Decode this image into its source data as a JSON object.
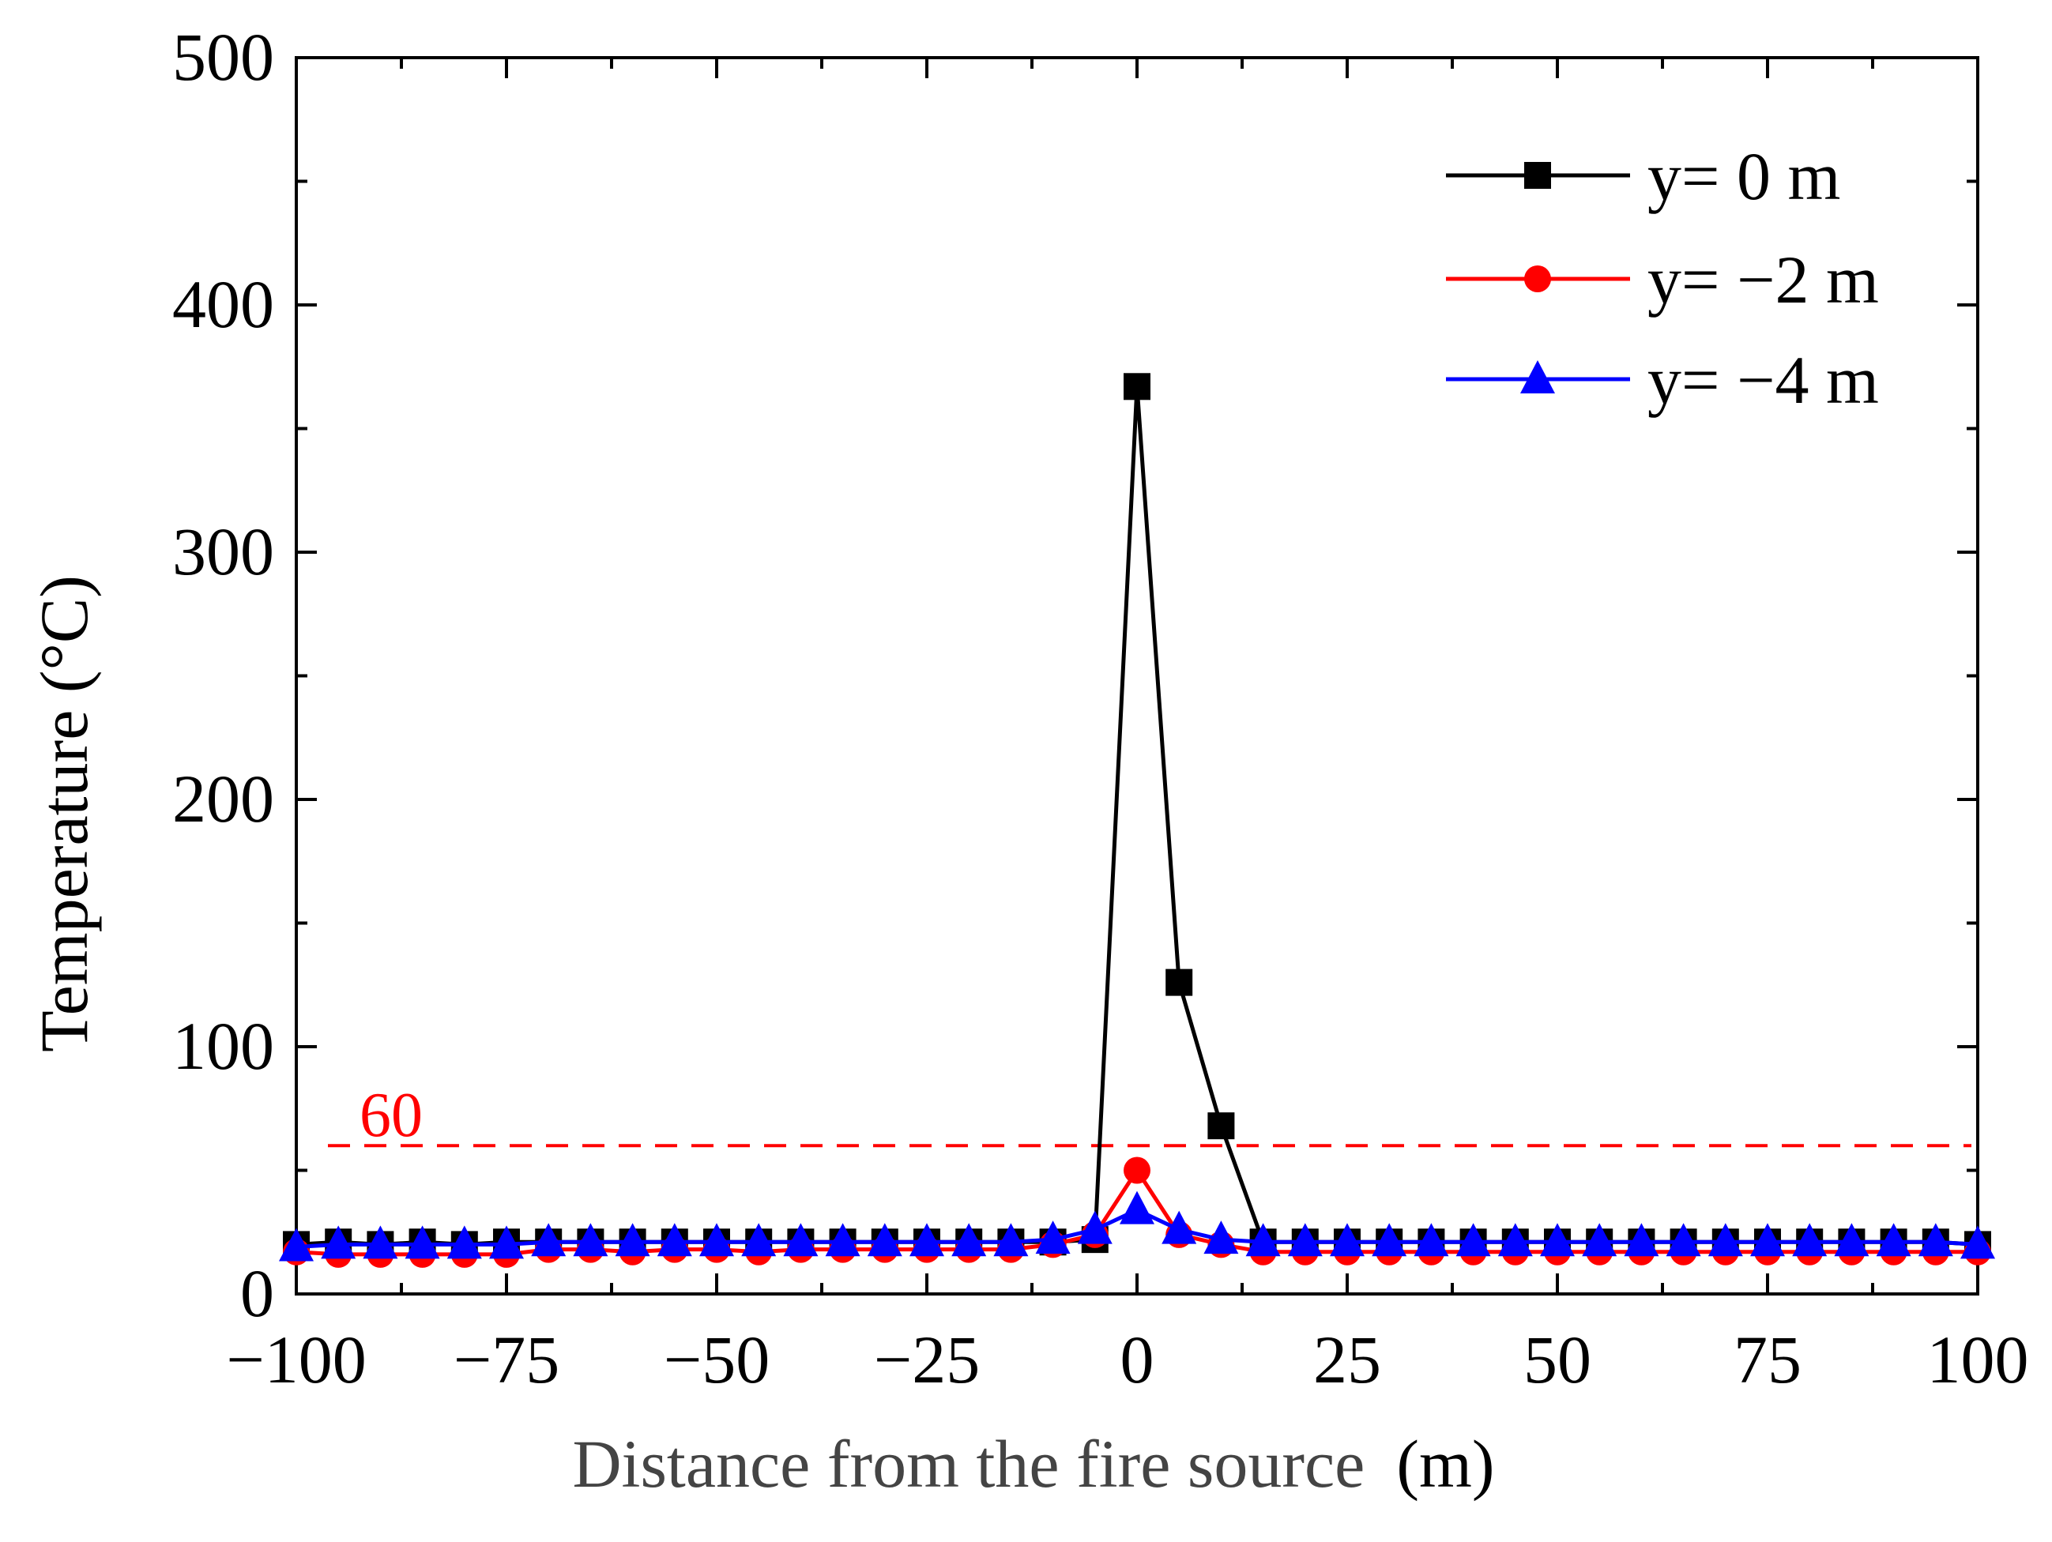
{
  "chart_data": {
    "type": "line",
    "title": "",
    "xlabel_main": "Distance from the fire source",
    "xlabel_unit": "(m)",
    "ylabel": "Temperature (°C)",
    "xlim": [
      -100,
      100
    ],
    "ylim": [
      0,
      500
    ],
    "xticks": [
      -100,
      -75,
      -50,
      -25,
      0,
      25,
      50,
      75,
      100
    ],
    "xtick_labels": [
      "−100",
      "−75",
      "−50",
      "−25",
      "0",
      "25",
      "50",
      "75",
      "100"
    ],
    "yticks": [
      0,
      100,
      200,
      300,
      400,
      500
    ],
    "ytick_labels": [
      "0",
      "100",
      "200",
      "300",
      "400",
      "500"
    ],
    "grid": false,
    "legend_position": "top-right",
    "reference_line": {
      "value": 60,
      "label": "60",
      "color": "#ff0000",
      "style": "dashed"
    },
    "x": [
      -100,
      -95,
      -90,
      -85,
      -80,
      -75,
      -70,
      -65,
      -60,
      -55,
      -50,
      -45,
      -40,
      -35,
      -30,
      -25,
      -20,
      -15,
      -10,
      -5,
      0,
      5,
      10,
      15,
      20,
      25,
      30,
      35,
      40,
      45,
      50,
      55,
      60,
      65,
      70,
      75,
      80,
      85,
      90,
      95,
      100
    ],
    "series": [
      {
        "name": "y= 0 m",
        "color": "#000000",
        "marker": "square",
        "values": [
          20,
          21,
          20,
          21,
          20,
          21,
          21,
          21,
          21,
          21,
          21,
          21,
          21,
          21,
          21,
          21,
          21,
          21,
          21,
          22,
          367,
          126,
          68,
          21,
          21,
          21,
          21,
          21,
          21,
          21,
          21,
          21,
          21,
          21,
          21,
          21,
          21,
          21,
          21,
          21,
          20
        ]
      },
      {
        "name": "y= −2 m",
        "color": "#ff0000",
        "marker": "circle",
        "values": [
          17,
          16,
          16,
          16,
          16,
          16,
          18,
          18,
          17,
          18,
          18,
          17,
          18,
          18,
          18,
          18,
          18,
          18,
          20,
          24,
          50,
          24,
          20,
          17,
          17,
          17,
          17,
          17,
          17,
          17,
          17,
          17,
          17,
          17,
          17,
          17,
          17,
          17,
          17,
          17,
          17
        ]
      },
      {
        "name": "y= −4 m",
        "color": "#0000ff",
        "marker": "triangle",
        "values": [
          19,
          20,
          20,
          20,
          20,
          20,
          21,
          21,
          21,
          21,
          21,
          21,
          21,
          21,
          21,
          21,
          21,
          21,
          22,
          26,
          34,
          26,
          22,
          21,
          21,
          21,
          21,
          21,
          21,
          21,
          21,
          21,
          21,
          21,
          21,
          21,
          21,
          21,
          21,
          21,
          20
        ]
      }
    ]
  }
}
